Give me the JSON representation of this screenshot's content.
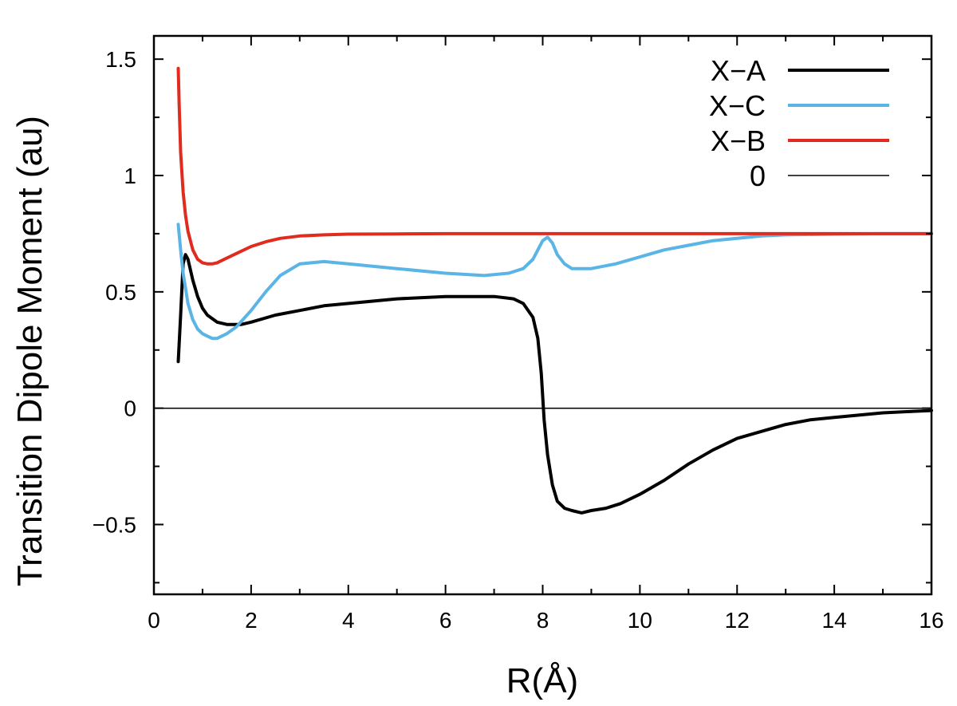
{
  "chart_data": {
    "type": "line",
    "title": "",
    "xlabel": "R(Å)",
    "ylabel": "Transition Dipole Moment (au)",
    "xlim": [
      0,
      16
    ],
    "ylim": [
      -0.8,
      1.6
    ],
    "xticks": [
      0,
      2,
      4,
      6,
      8,
      10,
      12,
      14,
      16
    ],
    "xtick_labels": [
      "0",
      "2",
      "4",
      "6",
      "8",
      "10",
      "12",
      "14",
      "16"
    ],
    "yticks": [
      -0.5,
      0,
      0.5,
      1,
      1.5
    ],
    "ytick_labels": [
      "−0.5",
      "0",
      "0.5",
      "1",
      "1.5"
    ],
    "grid": false,
    "legend_position": "top-right",
    "series": [
      {
        "name": "X−A",
        "color": "#000000",
        "width": "thick",
        "x": [
          0.5,
          0.55,
          0.6,
          0.65,
          0.7,
          0.8,
          0.9,
          1.0,
          1.1,
          1.3,
          1.5,
          1.8,
          2.0,
          2.5,
          3.0,
          3.5,
          4.0,
          5.0,
          6.0,
          7.0,
          7.4,
          7.6,
          7.8,
          7.9,
          7.97,
          8.03,
          8.1,
          8.2,
          8.3,
          8.45,
          8.6,
          8.8,
          9.0,
          9.3,
          9.6,
          10.0,
          10.5,
          11.0,
          11.5,
          12.0,
          12.5,
          13.0,
          13.5,
          14.0,
          14.5,
          15.0,
          15.5,
          16.0
        ],
        "y": [
          0.2,
          0.4,
          0.62,
          0.66,
          0.64,
          0.55,
          0.48,
          0.43,
          0.4,
          0.37,
          0.36,
          0.36,
          0.37,
          0.4,
          0.42,
          0.44,
          0.45,
          0.47,
          0.48,
          0.48,
          0.47,
          0.45,
          0.39,
          0.3,
          0.15,
          -0.05,
          -0.2,
          -0.33,
          -0.4,
          -0.43,
          -0.44,
          -0.45,
          -0.44,
          -0.43,
          -0.41,
          -0.37,
          -0.31,
          -0.24,
          -0.18,
          -0.13,
          -0.1,
          -0.07,
          -0.05,
          -0.04,
          -0.03,
          -0.02,
          -0.015,
          -0.01
        ]
      },
      {
        "name": "X−C",
        "color": "#5ab4e5",
        "width": "thick",
        "x": [
          0.5,
          0.55,
          0.6,
          0.7,
          0.8,
          0.9,
          1.0,
          1.1,
          1.2,
          1.3,
          1.5,
          1.7,
          2.0,
          2.3,
          2.6,
          3.0,
          3.5,
          4.0,
          5.0,
          6.0,
          6.8,
          7.3,
          7.6,
          7.8,
          7.9,
          8.0,
          8.1,
          8.2,
          8.3,
          8.45,
          8.6,
          8.8,
          9.0,
          9.5,
          10.0,
          10.5,
          11.0,
          11.5,
          12.0,
          12.5,
          13.0,
          14.0,
          15.0,
          16.0
        ],
        "y": [
          0.79,
          0.68,
          0.58,
          0.45,
          0.38,
          0.34,
          0.32,
          0.31,
          0.3,
          0.3,
          0.32,
          0.35,
          0.42,
          0.5,
          0.57,
          0.62,
          0.63,
          0.62,
          0.6,
          0.58,
          0.57,
          0.58,
          0.6,
          0.64,
          0.68,
          0.72,
          0.735,
          0.71,
          0.66,
          0.62,
          0.6,
          0.6,
          0.6,
          0.62,
          0.65,
          0.68,
          0.7,
          0.72,
          0.73,
          0.74,
          0.745,
          0.748,
          0.75,
          0.75
        ]
      },
      {
        "name": "X−B",
        "color": "#e02b1f",
        "width": "thick",
        "x": [
          0.5,
          0.52,
          0.55,
          0.6,
          0.65,
          0.7,
          0.8,
          0.9,
          1.0,
          1.1,
          1.2,
          1.3,
          1.5,
          1.7,
          2.0,
          2.3,
          2.6,
          3.0,
          3.5,
          4.0,
          5.0,
          6.0,
          8.0,
          10.0,
          12.0,
          14.0,
          16.0
        ],
        "y": [
          1.46,
          1.3,
          1.1,
          0.93,
          0.83,
          0.76,
          0.68,
          0.64,
          0.625,
          0.62,
          0.62,
          0.625,
          0.645,
          0.665,
          0.695,
          0.715,
          0.73,
          0.74,
          0.745,
          0.748,
          0.749,
          0.75,
          0.75,
          0.75,
          0.75,
          0.75,
          0.75
        ]
      },
      {
        "name": "0",
        "color": "#000000",
        "width": "thin",
        "x": [
          0,
          16
        ],
        "y": [
          0,
          0
        ]
      }
    ]
  }
}
